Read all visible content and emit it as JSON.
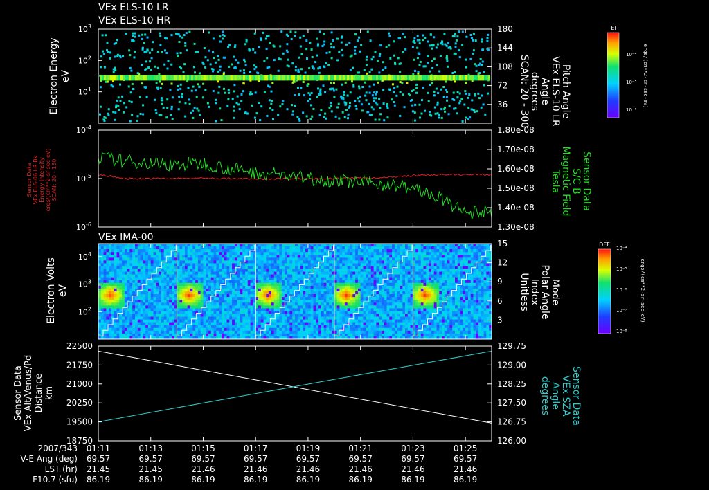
{
  "colors": {
    "background": "#000000",
    "foreground": "#ffffff",
    "mag_field": "#22dd22",
    "intensity": "#dd2222",
    "sza": "#33cccc",
    "alt": "#ffffff"
  },
  "chart_data": [
    {
      "type": "heatmap",
      "titles": [
        "VEx ELS-10 LR",
        "VEx ELS-10 HR"
      ],
      "ylabel": [
        "Electron Energy",
        "eV"
      ],
      "yscale": "log",
      "ylim": [
        1,
        1000
      ],
      "yticks": [
        {
          "v": 1000,
          "b": "10",
          "e": "3"
        },
        {
          "v": 100,
          "b": "10",
          "e": "2"
        },
        {
          "v": 10,
          "b": "10",
          "e": "1"
        }
      ],
      "y2label": [
        "Pitch Angle",
        "VEx ELS-10 LR",
        "Angle",
        "degrees",
        "SCAN: 20 - 300"
      ],
      "y2lim": [
        0,
        180
      ],
      "y2ticks": [
        "180",
        "144",
        "108",
        "72",
        "36"
      ],
      "y2tick_values": [
        180,
        144,
        108,
        72,
        36
      ],
      "colorbar": {
        "label": "El",
        "ticks": [
          "10⁻⁴",
          "10⁻⁵",
          "10⁻⁶"
        ],
        "unit": "ergs/(cm**2-sr-sec-eV)"
      },
      "band_energy_eV": 28
    },
    {
      "type": "line",
      "ylabel": [
        "Sensor Data",
        "VEx ELS-06 LR Bk",
        "Energy Intensity",
        "ergs/(cm**2-sr-sec-eV)",
        "SCAN: 20 - 150"
      ],
      "yscale": "log",
      "ylim": [
        1e-06,
        0.0001
      ],
      "yticks": [
        {
          "v": 0.0001,
          "b": "10",
          "e": "-4"
        },
        {
          "v": 1e-05,
          "b": "10",
          "e": "-5"
        },
        {
          "v": 1e-06,
          "b": "10",
          "e": "-6"
        }
      ],
      "y2label": [
        "Sensor Data",
        "S/C B",
        "Magnetic Field",
        "Tesla"
      ],
      "y2lim": [
        1.3e-08,
        1.8e-08
      ],
      "y2ticks": [
        "1.80e-08",
        "1.70e-08",
        "1.60e-08",
        "1.50e-08",
        "1.40e-08",
        "1.30e-08"
      ],
      "series": [
        {
          "name": "Energy Intensity",
          "axis": "left",
          "x": [
            0,
            60,
            120,
            180,
            240,
            300,
            360,
            420,
            480,
            540,
            600,
            660,
            720,
            780,
            840,
            900
          ],
          "y": [
            1.2e-05,
            1e-05,
            1e-05,
            1e-05,
            1.02e-05,
            1e-05,
            9.8e-06,
            1e-05,
            1e-05,
            1e-05,
            1.02e-05,
            1.05e-05,
            1.15e-05,
            1.2e-05,
            1.2e-05,
            1.2e-05
          ]
        },
        {
          "name": "Magnetic Field",
          "axis": "right",
          "x": [
            0,
            60,
            120,
            180,
            240,
            300,
            360,
            420,
            480,
            540,
            600,
            660,
            720,
            780,
            840,
            900
          ],
          "y": [
            1.66e-08,
            1.64e-08,
            1.63e-08,
            1.62e-08,
            1.63e-08,
            1.6e-08,
            1.58e-08,
            1.57e-08,
            1.55e-08,
            1.54e-08,
            1.53e-08,
            1.52e-08,
            1.5e-08,
            1.45e-08,
            1.37e-08,
            1.38e-08
          ]
        }
      ]
    },
    {
      "type": "heatmap",
      "titles": [
        "VEx IMA-00"
      ],
      "ylabel": [
        "Electron Volts",
        "eV"
      ],
      "yscale": "log",
      "ylim": [
        10,
        30000
      ],
      "yticks": [
        {
          "v": 10000,
          "b": "10",
          "e": "4"
        },
        {
          "v": 1000,
          "b": "10",
          "e": "3"
        },
        {
          "v": 100,
          "b": "10",
          "e": "2"
        }
      ],
      "y2label": [
        "Mode",
        "Polar Angle",
        "Index",
        "Unitless"
      ],
      "y2lim": [
        0,
        15
      ],
      "y2ticks": [
        "15",
        "12",
        "9",
        "6",
        "3"
      ],
      "y2tick_values": [
        15,
        12,
        9,
        6,
        3
      ],
      "colorbar": {
        "label": "DEF",
        "ticks": [
          "10⁻⁴",
          "10⁻⁵",
          "10⁻⁶",
          "10⁻⁷",
          "10⁻⁸"
        ],
        "unit": "ergs/(cm**2-sr-sec-eV)"
      },
      "scan_times_s": [
        0,
        180,
        360,
        540,
        720,
        900
      ]
    },
    {
      "type": "line",
      "ylabel": [
        "Sensor Data",
        "VEx Alt/Venus/Pd",
        "Distance",
        "km"
      ],
      "ylim": [
        18750,
        22500
      ],
      "yticks": [
        "22500",
        "21750",
        "21000",
        "20250",
        "19500",
        "18750"
      ],
      "ytick_values": [
        22500,
        21750,
        21000,
        20250,
        19500,
        18750
      ],
      "y2label": [
        "Sensor Data",
        "VEx SZA",
        "Angle",
        "degrees"
      ],
      "y2lim": [
        126.0,
        129.75
      ],
      "y2ticks": [
        "129.75",
        "129.00",
        "128.25",
        "127.50",
        "126.75",
        "126.00"
      ],
      "y2tick_values": [
        129.75,
        129.0,
        128.25,
        127.5,
        126.75,
        126.0
      ],
      "series": [
        {
          "name": "Distance",
          "axis": "left",
          "x": [
            0,
            900
          ],
          "y": [
            22300,
            19450
          ]
        },
        {
          "name": "Angle",
          "axis": "right",
          "x": [
            0,
            900
          ],
          "y": [
            126.75,
            129.55
          ]
        }
      ]
    }
  ],
  "xaxis": {
    "range_s": [
      0,
      900
    ],
    "ticks": [
      "01:11",
      "01:13",
      "01:15",
      "01:17",
      "01:19",
      "01:21",
      "01:23",
      "01:25"
    ],
    "tick_seconds": [
      0,
      120,
      240,
      360,
      480,
      600,
      720,
      840
    ]
  },
  "footer": {
    "rows": [
      {
        "label": "2007/343",
        "values": [
          "01:11",
          "01:13",
          "01:15",
          "01:17",
          "01:19",
          "01:21",
          "01:23",
          "01:25"
        ]
      },
      {
        "label": "V-E Ang (deg)",
        "values": [
          "69.57",
          "69.57",
          "69.57",
          "69.57",
          "69.57",
          "69.57",
          "69.57",
          "69.57"
        ]
      },
      {
        "label": "LST (hr)",
        "values": [
          "21.45",
          "21.45",
          "21.46",
          "21.46",
          "21.46",
          "21.46",
          "21.46",
          "21.46"
        ]
      },
      {
        "label": "F10.7 (sfu)",
        "values": [
          "86.19",
          "86.19",
          "86.19",
          "86.19",
          "86.19",
          "86.19",
          "86.19",
          "86.19"
        ]
      }
    ]
  }
}
